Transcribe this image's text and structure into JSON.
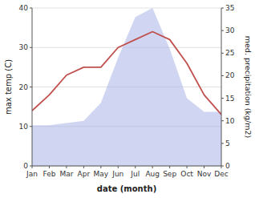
{
  "chart_data": {
    "type": "line",
    "x_label": "date (month)",
    "y_label": "max temp (C)",
    "y2_label": "med. precipitation (kg/m2)",
    "categories": [
      "Jan",
      "Feb",
      "Mar",
      "Apr",
      "May",
      "Jun",
      "Jul",
      "Aug",
      "Sep",
      "Oct",
      "Nov",
      "Dec"
    ],
    "series": [
      {
        "type": "area",
        "axis": "y2",
        "color": "#aab4e8",
        "values": [
          9,
          9,
          9.5,
          10,
          14,
          24,
          33,
          35,
          26,
          15,
          12,
          12
        ]
      },
      {
        "type": "line",
        "color": "#c0504d",
        "values": [
          14,
          18,
          23,
          25,
          25,
          30,
          32,
          34,
          32,
          26,
          18,
          13
        ]
      }
    ],
    "ylim": [
      0,
      40
    ],
    "yticks": [
      0,
      10,
      20,
      30,
      40
    ],
    "y2lim": [
      0,
      35
    ],
    "y2ticks": [
      0,
      5,
      10,
      15,
      20,
      25,
      30,
      35
    ],
    "grid": true
  }
}
